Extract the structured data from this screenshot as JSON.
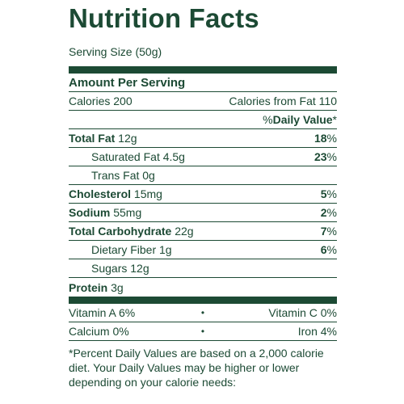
{
  "title": "Nutrition Facts",
  "serving": "Serving Size (50g)",
  "amount_per_serving": "Amount Per Serving",
  "calories": "Calories 200",
  "calories_from_fat": "Calories from Fat 110",
  "dv_pre": "%",
  "dv_bold": "Daily Value",
  "dv_post": "*",
  "rows": {
    "total_fat": {
      "name": "Total Fat",
      "amount": " 12g",
      "dv": "18",
      "pct": "%"
    },
    "saturated_fat": {
      "name": "Saturated Fat 4.5g",
      "dv": "23",
      "pct": "%"
    },
    "trans_fat": {
      "name": "Trans Fat 0g"
    },
    "cholesterol": {
      "name": "Cholesterol",
      "amount": " 15mg",
      "dv": "5",
      "pct": "%"
    },
    "sodium": {
      "name": "Sodium",
      "amount": " 55mg",
      "dv": "2",
      "pct": "%"
    },
    "total_carb": {
      "name": "Total Carbohydrate",
      "amount": " 22g",
      "dv": "7",
      "pct": "%"
    },
    "dietary_fiber": {
      "name": "Dietary Fiber 1g",
      "dv": "6",
      "pct": "%"
    },
    "sugars": {
      "name": "Sugars 12g"
    },
    "protein": {
      "name": "Protein",
      "amount": " 3g"
    }
  },
  "vitamins": {
    "vitamin_a": "Vitamin A 6%",
    "vitamin_c": "Vitamin C 0%",
    "calcium": "Calcium 0%",
    "iron": "Iron 4%",
    "separator": "•"
  },
  "footnote": "*Percent Daily Values are based on a 2,000 calorie diet. Your Daily Values may be higher or lower depending on your calorie needs:",
  "colors": {
    "ink": "#1c4a34",
    "background": "#ffffff"
  }
}
